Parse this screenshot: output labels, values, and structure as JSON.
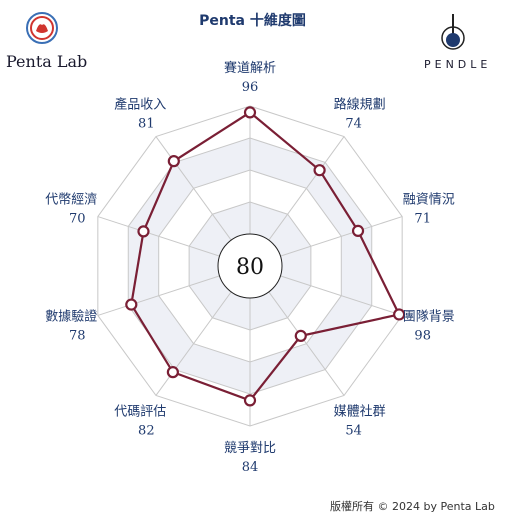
{
  "header": {
    "title": "Penta 十維度圖",
    "lab_name": "Penta Lab",
    "brand_name": "PENDLE"
  },
  "footer": {
    "copyright": "版權所有 © 2024 by Penta Lab"
  },
  "chart_data": {
    "type": "radar",
    "center_score": "80",
    "max": 100,
    "rings": [
      20,
      40,
      60,
      80,
      100
    ],
    "categories": [
      "賽道解析",
      "路線規劃",
      "融資情況",
      "團隊背景",
      "媒體社群",
      "競爭對比",
      "代碼評估",
      "數據驗證",
      "代幣經濟",
      "產品收入"
    ],
    "values": [
      96,
      74,
      71,
      98,
      54,
      84,
      82,
      78,
      70,
      81
    ],
    "colors": {
      "line": "#7a1f35",
      "grid": "#c8c8c8",
      "label": "#1f3a6e"
    }
  }
}
